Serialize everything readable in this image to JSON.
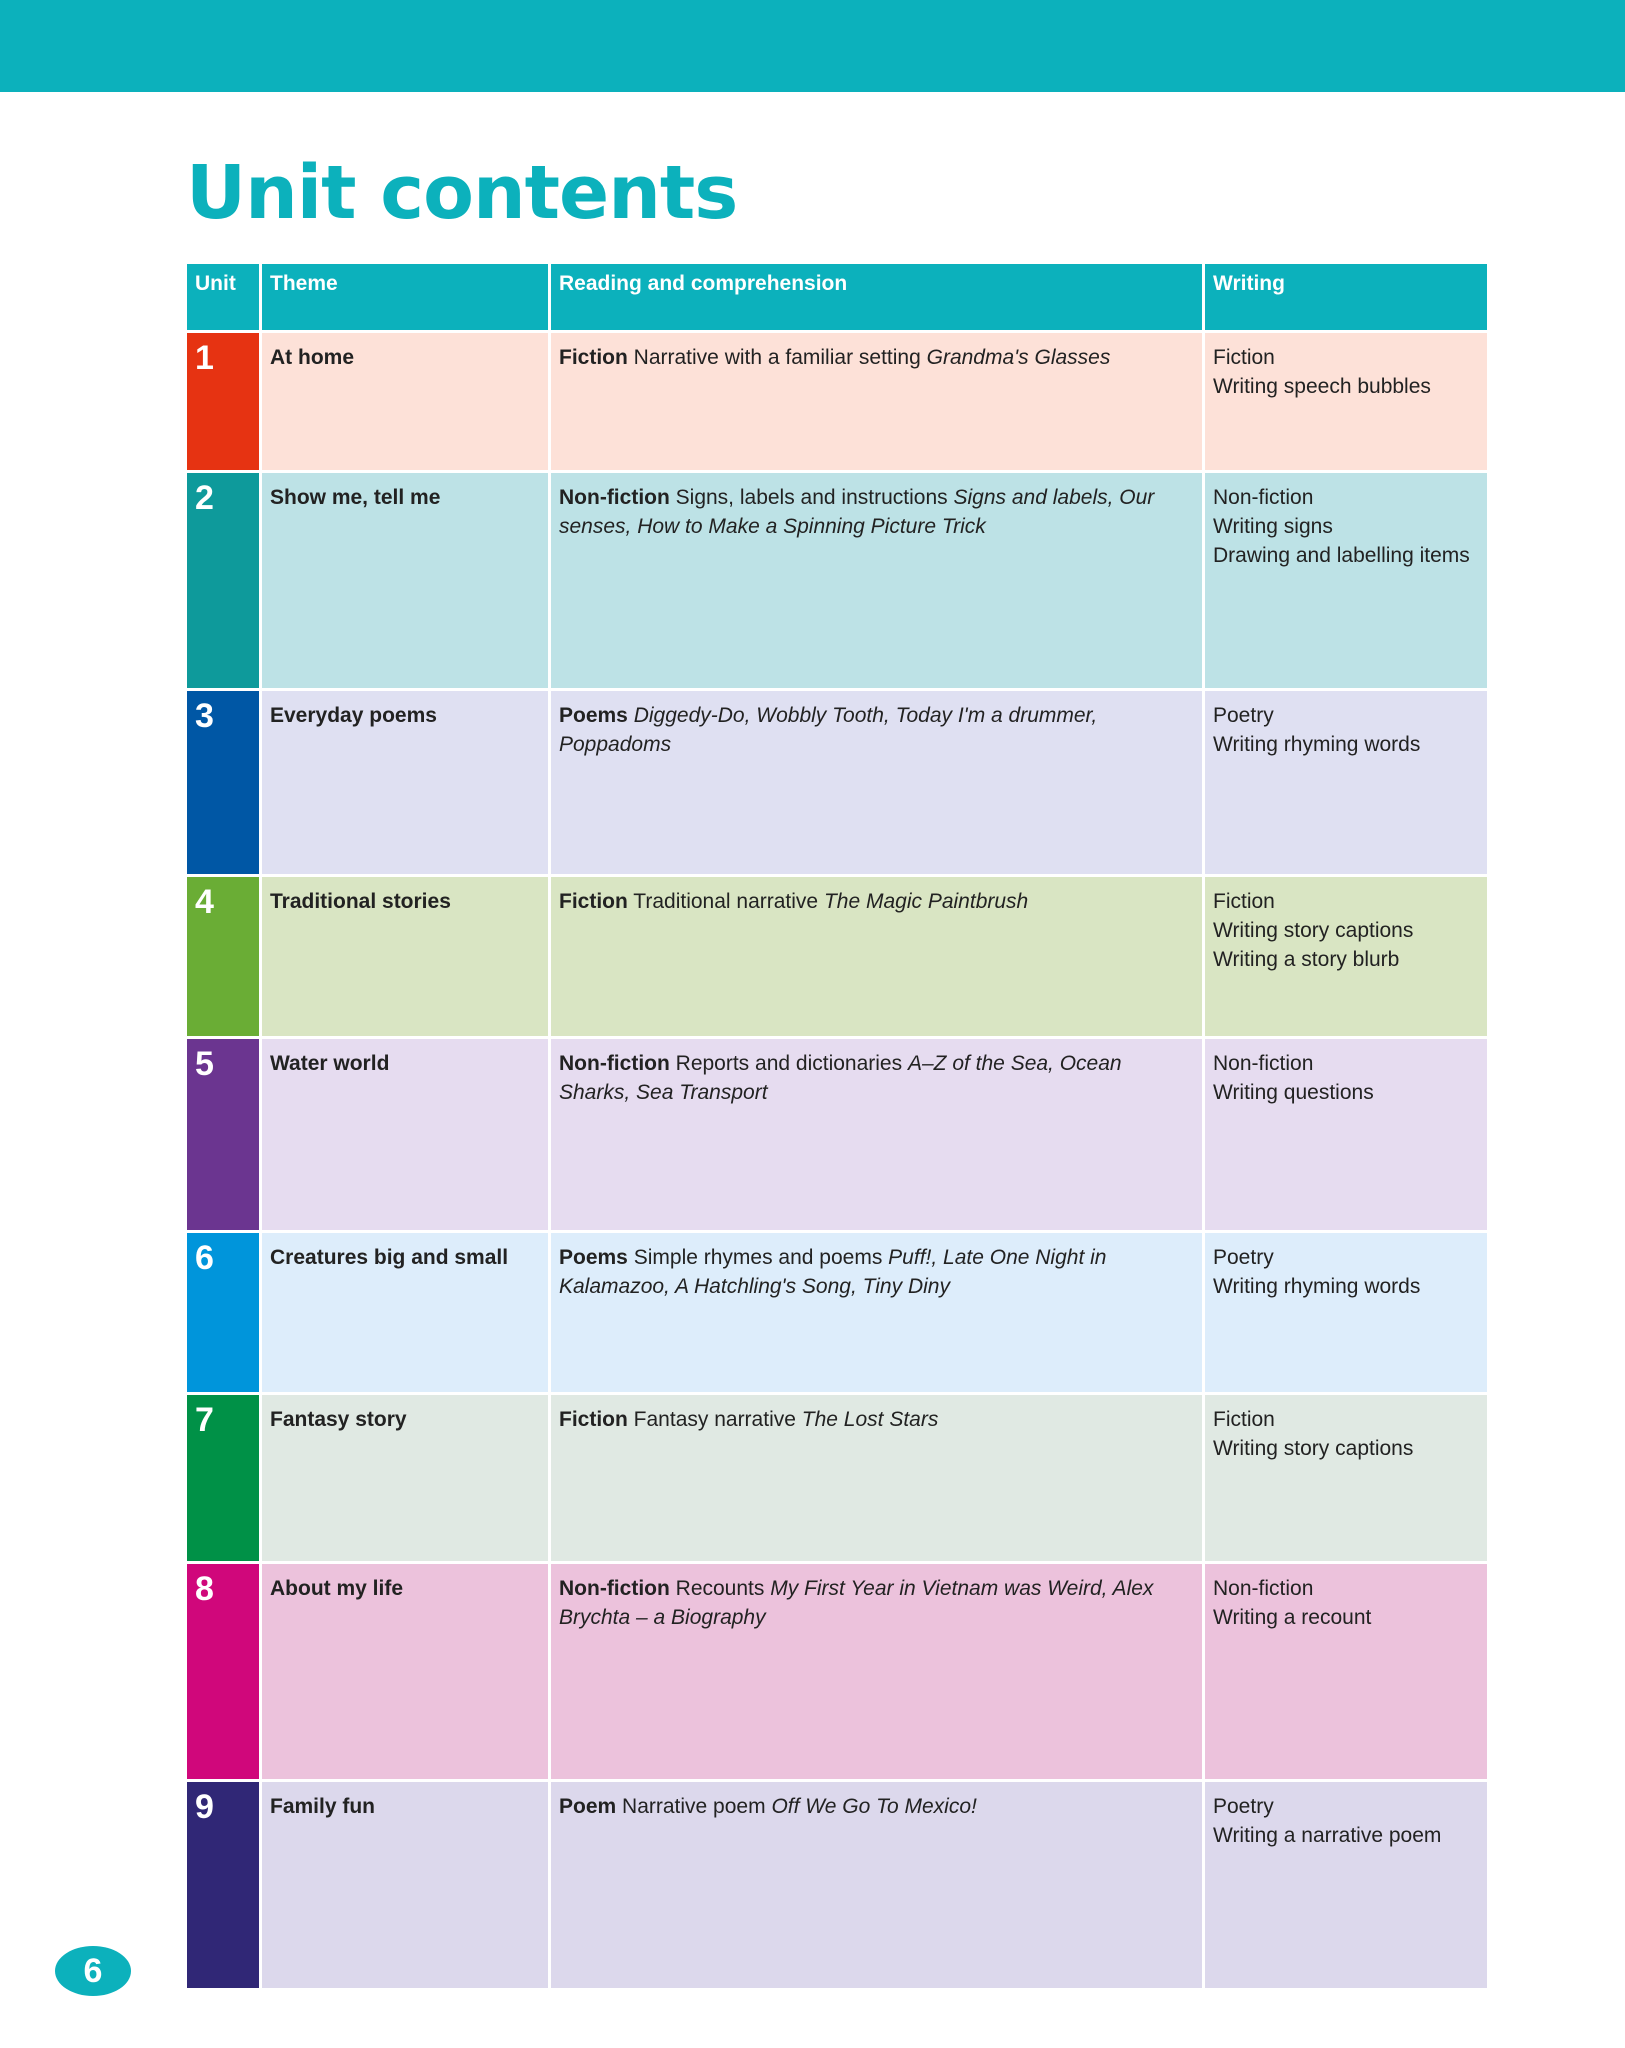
{
  "title": "Unit contents",
  "page_number": "6",
  "colors": {
    "accent": "#0cb1bc"
  },
  "headers": {
    "unit": "Unit",
    "theme": "Theme",
    "reading": "Reading and comprehension",
    "writing": "Writing"
  },
  "units": [
    {
      "number": "1",
      "theme": "At home",
      "genre": "Fiction",
      "description": "Narrative with a familiar setting",
      "titles": "Grandma's Glasses",
      "writing": [
        "Fiction",
        "Writing speech bubbles"
      ],
      "color": "#e63312",
      "bg": "#fde1d8"
    },
    {
      "number": "2",
      "theme": "Show me, tell me",
      "genre": "Non-fiction",
      "description": "Signs, labels and instructions",
      "titles": "Signs and labels, Our senses, How to Make a Spinning Picture Trick",
      "writing": [
        "Non-fiction",
        "Writing signs",
        "Drawing and labelling items"
      ],
      "color": "#0e9a9b",
      "bg": "#bde2e6"
    },
    {
      "number": "3",
      "theme": "Everyday poems",
      "genre": "Poems",
      "description": "",
      "titles": "Diggedy-Do, Wobbly Tooth, Today I'm a drummer, Poppadoms",
      "writing": [
        "Poetry",
        "Writing rhyming words"
      ],
      "color": "#0057a5",
      "bg": "#dfe0f2"
    },
    {
      "number": "4",
      "theme": "Traditional stories",
      "genre": "Fiction",
      "description": "Traditional narrative",
      "titles": "The Magic Paintbrush",
      "writing": [
        "Fiction",
        "Writing story captions",
        "Writing a story blurb"
      ],
      "color": "#6aad35",
      "bg": "#d9e5c3"
    },
    {
      "number": "5",
      "theme": "Water world",
      "genre": "Non-fiction",
      "description": "Reports and dictionaries",
      "titles": "A–Z of the Sea, Ocean Sharks, Sea Transport",
      "writing": [
        "Non-fiction",
        "Writing questions"
      ],
      "color": "#6b3590",
      "bg": "#e6dcf0"
    },
    {
      "number": "6",
      "theme": "Creatures big and small",
      "genre": "Poems",
      "description": "Simple rhymes and poems",
      "titles": "Puff!, Late One Night in Kalamazoo, A Hatchling's Song, Tiny Diny",
      "writing": [
        "Poetry",
        "Writing rhyming words"
      ],
      "color": "#0095db",
      "bg": "#ddedfb"
    },
    {
      "number": "7",
      "theme": "Fantasy story",
      "genre": "Fiction",
      "description": "Fantasy narrative",
      "titles": "The Lost Stars",
      "writing": [
        "Fiction",
        "Writing story captions"
      ],
      "color": "#009147",
      "bg": "#e0e9e3"
    },
    {
      "number": "8",
      "theme": "About my life",
      "genre": "Non-fiction",
      "description": "Recounts",
      "titles": "My First Year in Vietnam was Weird, Alex Brychta – a Biography",
      "writing": [
        "Non-fiction",
        "Writing a recount"
      ],
      "color": "#d0077b",
      "bg": "#ecc2dc"
    },
    {
      "number": "9",
      "theme": "Family fun",
      "genre": "Poem",
      "description": "Narrative poem",
      "titles": "Off We Go To Mexico!",
      "writing": [
        "Poetry",
        "Writing a narrative poem"
      ],
      "color": "#302776",
      "bg": "#dcd8ec"
    }
  ]
}
